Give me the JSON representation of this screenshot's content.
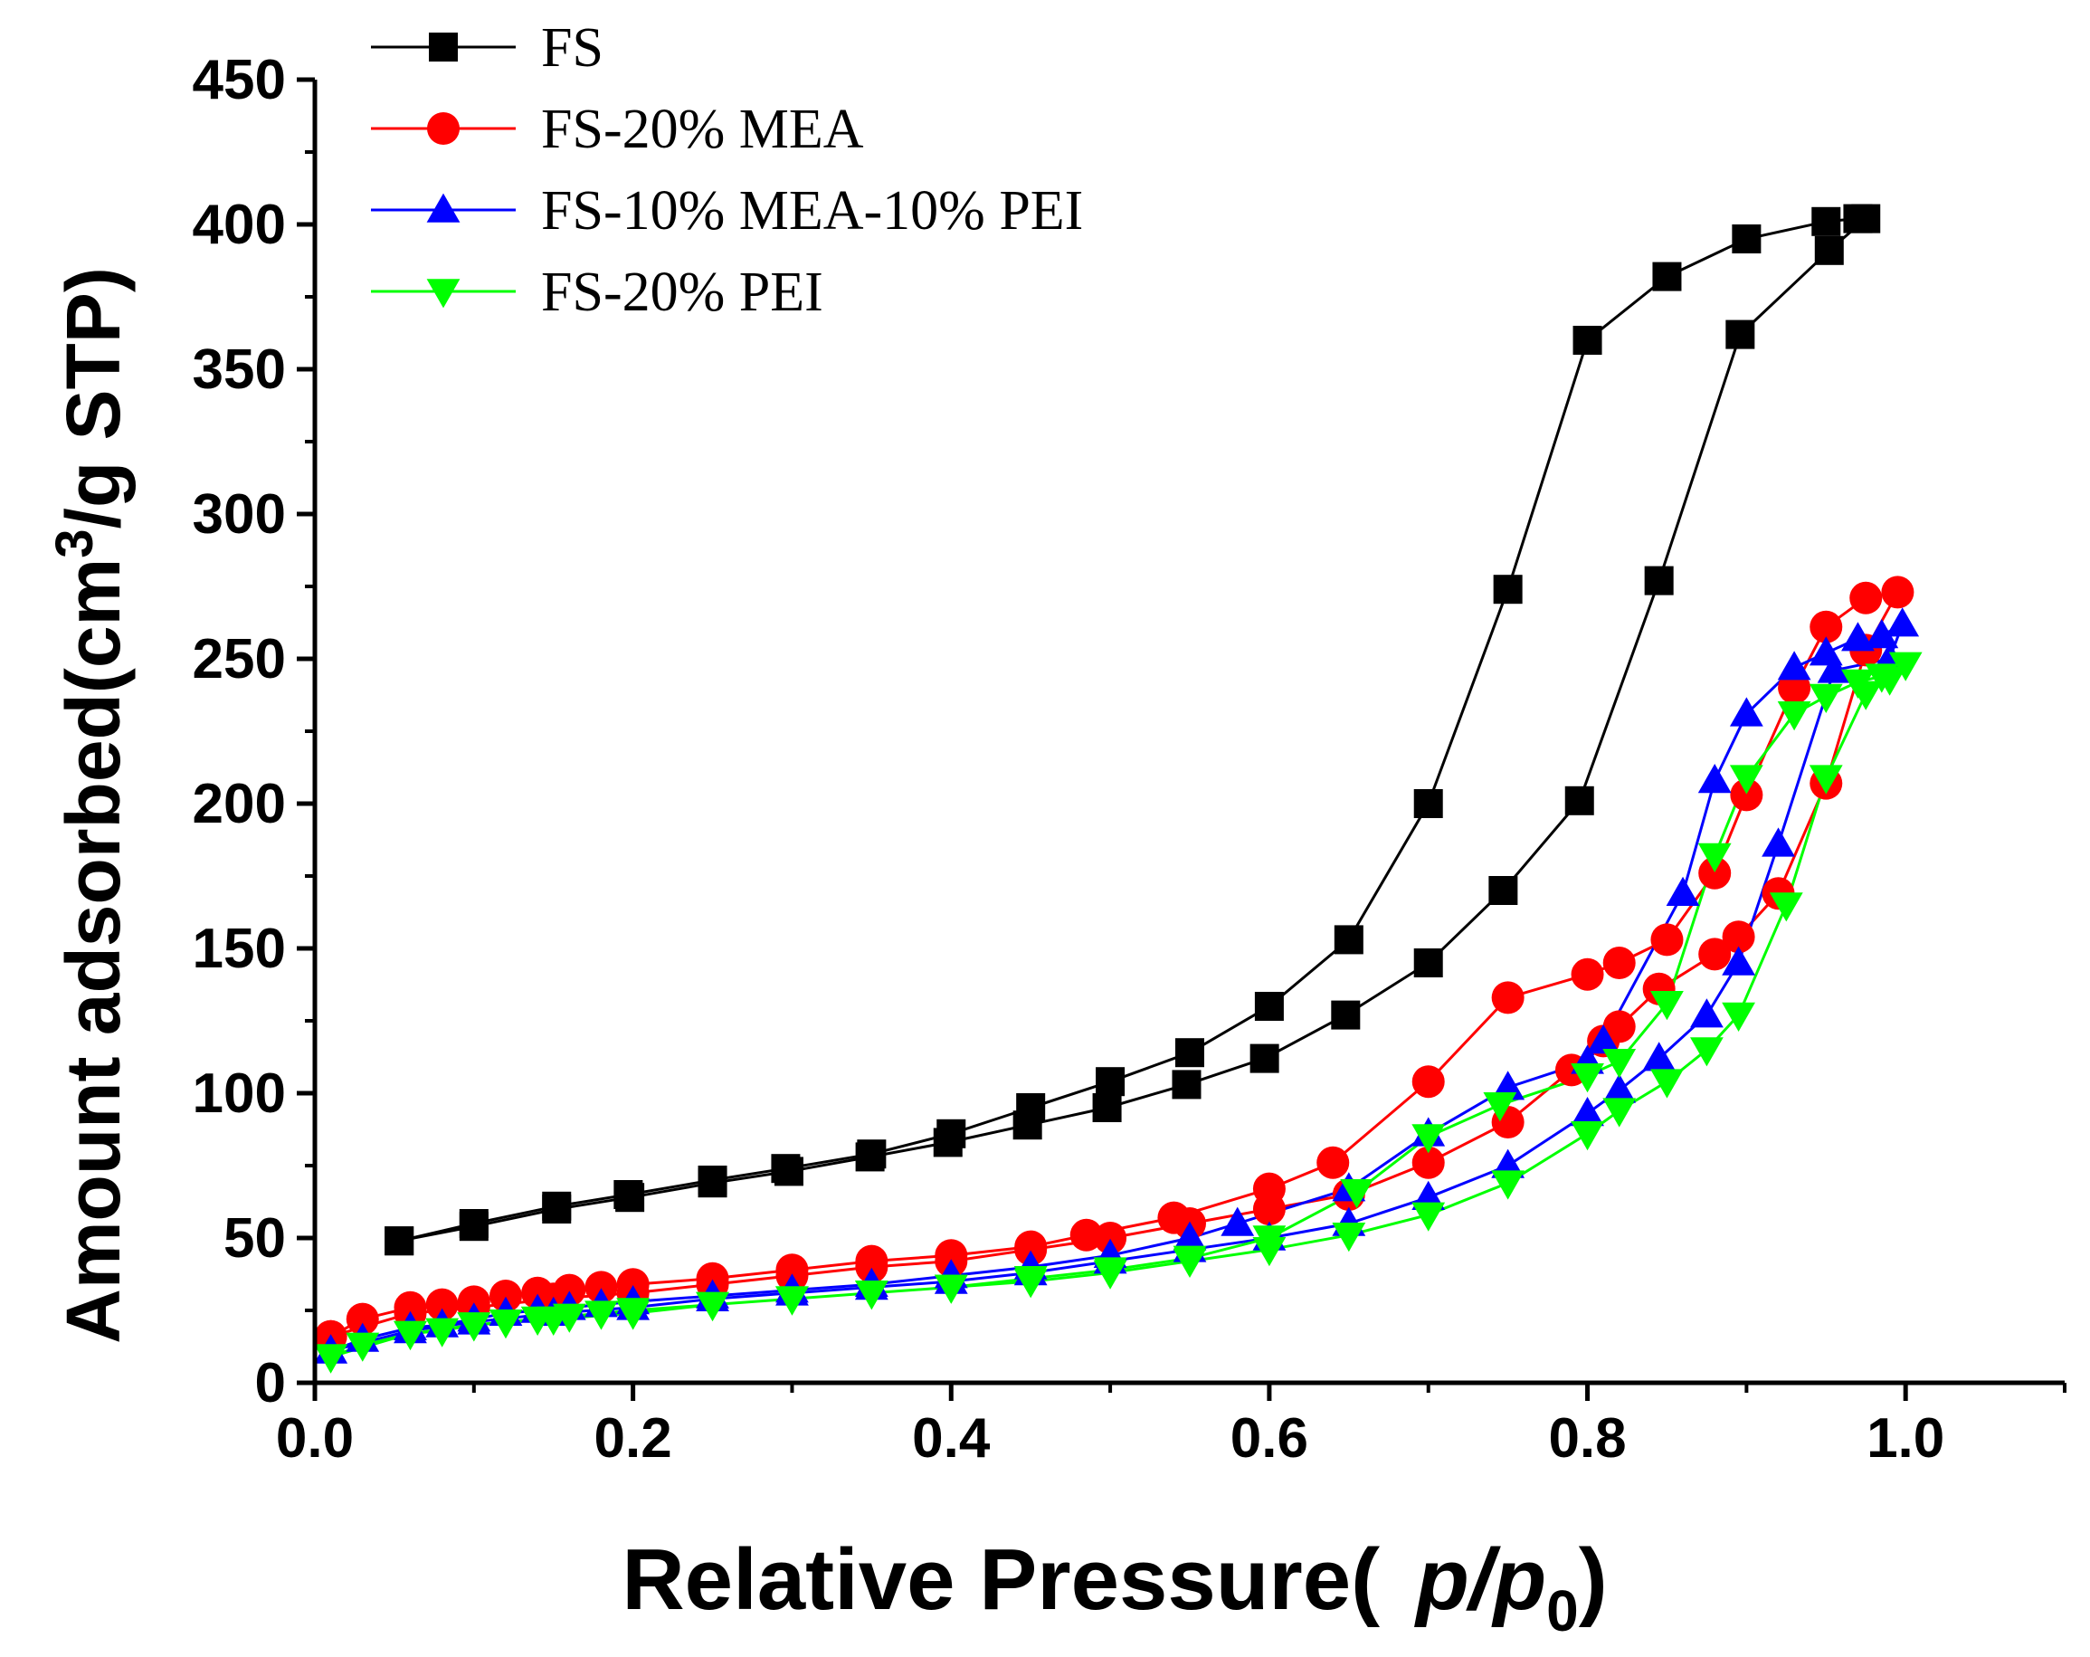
{
  "chart_data": {
    "type": "line",
    "title": "",
    "xlabel": "Relative Pressure(",
    "xlabel_var": "p/p",
    "xlabel_sub": "0",
    "xlabel_close": ")",
    "ylabel": "Amount adsorbed(cm",
    "ylabel_sup": "3",
    "ylabel_rest": "/g STP)",
    "xlim": [
      0.0,
      1.1
    ],
    "ylim": [
      0,
      450
    ],
    "xticks": [
      0.0,
      0.2,
      0.4,
      0.6,
      0.8,
      1.0
    ],
    "xtick_labels": [
      "0.0",
      "0.2",
      "0.4",
      "0.6",
      "0.8",
      "1.0"
    ],
    "yticks": [
      0,
      50,
      100,
      150,
      200,
      250,
      300,
      350,
      400,
      450
    ],
    "ytick_labels": [
      "0",
      "50",
      "100",
      "150",
      "200",
      "250",
      "300",
      "350",
      "400",
      "450"
    ],
    "legend_position": "top-left",
    "series": [
      {
        "name": "FS",
        "color": "#000000",
        "marker": "square",
        "x": [
          0.053,
          0.1,
          0.152,
          0.197,
          0.25,
          0.296,
          0.35,
          0.4,
          0.45,
          0.5,
          0.55,
          0.6,
          0.65,
          0.7,
          0.75,
          0.8,
          0.85,
          0.9,
          0.95,
          0.97,
          0.975,
          0.952,
          0.896,
          0.845,
          0.795,
          0.747,
          0.7,
          0.648,
          0.597,
          0.548,
          0.498,
          0.448,
          0.398,
          0.349,
          0.298,
          0.25,
          0.198,
          0.152,
          0.1,
          0.053
        ],
        "y": [
          49,
          55,
          61,
          65,
          70,
          74,
          79,
          86,
          95,
          104,
          114,
          130,
          153,
          200,
          274,
          360,
          382,
          395,
          401,
          402,
          402,
          391,
          362,
          277,
          201,
          170,
          145,
          127,
          112,
          103,
          95,
          89,
          83,
          78,
          73,
          69,
          64,
          60,
          54,
          49
        ]
      },
      {
        "name": "FS-20% MEA",
        "color": "#ff0000",
        "marker": "circle",
        "x": [
          0.01,
          0.03,
          0.06,
          0.08,
          0.1,
          0.12,
          0.14,
          0.16,
          0.18,
          0.2,
          0.25,
          0.3,
          0.35,
          0.4,
          0.45,
          0.485,
          0.54,
          0.6,
          0.64,
          0.7,
          0.75,
          0.8,
          0.82,
          0.85,
          0.88,
          0.9,
          0.93,
          0.95,
          0.975,
          0.995,
          0.975,
          0.95,
          0.92,
          0.895,
          0.88,
          0.845,
          0.82,
          0.81,
          0.79,
          0.75,
          0.7,
          0.65,
          0.6,
          0.55,
          0.5,
          0.45,
          0.4,
          0.35,
          0.3,
          0.25,
          0.2,
          0.15,
          0.1,
          0.06,
          0.01
        ],
        "y": [
          16,
          22,
          26,
          27,
          28,
          30,
          31,
          32,
          33,
          34,
          36,
          39,
          42,
          44,
          47,
          51,
          57,
          67,
          76,
          104,
          133,
          141,
          145,
          153,
          176,
          203,
          240,
          261,
          271,
          273,
          253,
          207,
          169,
          154,
          148,
          136,
          123,
          118,
          108,
          90,
          76,
          65,
          60,
          55,
          50,
          46,
          42,
          40,
          37,
          34,
          31,
          29,
          26,
          24,
          16
        ]
      },
      {
        "name": "FS-10% MEA-10% PEI",
        "color": "#0000ff",
        "marker": "triangle-up",
        "x": [
          0.01,
          0.03,
          0.06,
          0.08,
          0.1,
          0.12,
          0.14,
          0.16,
          0.18,
          0.2,
          0.25,
          0.3,
          0.35,
          0.4,
          0.45,
          0.5,
          0.55,
          0.58,
          0.65,
          0.7,
          0.75,
          0.8,
          0.81,
          0.86,
          0.88,
          0.9,
          0.93,
          0.95,
          0.97,
          0.985,
          0.998,
          0.99,
          0.955,
          0.92,
          0.895,
          0.875,
          0.845,
          0.82,
          0.8,
          0.75,
          0.7,
          0.65,
          0.6,
          0.55,
          0.5,
          0.45,
          0.4,
          0.35,
          0.3,
          0.25,
          0.2,
          0.15,
          0.1,
          0.06,
          0.01
        ],
        "y": [
          11,
          15,
          19,
          20,
          22,
          24,
          25,
          26,
          27,
          28,
          30,
          32,
          34,
          37,
          40,
          44,
          50,
          55,
          67,
          86,
          102,
          111,
          118,
          169,
          208,
          231,
          247,
          252,
          257,
          258,
          262,
          250,
          246,
          186,
          145,
          127,
          112,
          101,
          93,
          75,
          64,
          55,
          50,
          46,
          42,
          38,
          35,
          33,
          31,
          29,
          26,
          24,
          21,
          18,
          11
        ]
      },
      {
        "name": "FS-20% PEI",
        "color": "#00ff00",
        "marker": "triangle-down",
        "x": [
          0.01,
          0.03,
          0.06,
          0.08,
          0.1,
          0.12,
          0.14,
          0.16,
          0.18,
          0.2,
          0.25,
          0.3,
          0.35,
          0.4,
          0.45,
          0.5,
          0.55,
          0.6,
          0.655,
          0.7,
          0.745,
          0.8,
          0.82,
          0.85,
          0.88,
          0.9,
          0.93,
          0.95,
          0.97,
          0.985,
          1.0,
          0.99,
          0.975,
          0.95,
          0.925,
          0.895,
          0.875,
          0.85,
          0.82,
          0.8,
          0.75,
          0.7,
          0.65,
          0.6,
          0.55,
          0.5,
          0.45,
          0.4,
          0.35,
          0.3,
          0.25,
          0.2,
          0.15,
          0.1,
          0.06,
          0.01
        ],
        "y": [
          9,
          13,
          17,
          18,
          20,
          21,
          22,
          23,
          24,
          25,
          27,
          29,
          31,
          33,
          36,
          39,
          43,
          50,
          66,
          85,
          96,
          106,
          111,
          131,
          182,
          209,
          231,
          237,
          242,
          244,
          248,
          243,
          238,
          209,
          165,
          127,
          115,
          104,
          94,
          86,
          69,
          58,
          51,
          46,
          42,
          38,
          35,
          33,
          31,
          29,
          27,
          24,
          22,
          20,
          17,
          9
        ]
      }
    ]
  }
}
